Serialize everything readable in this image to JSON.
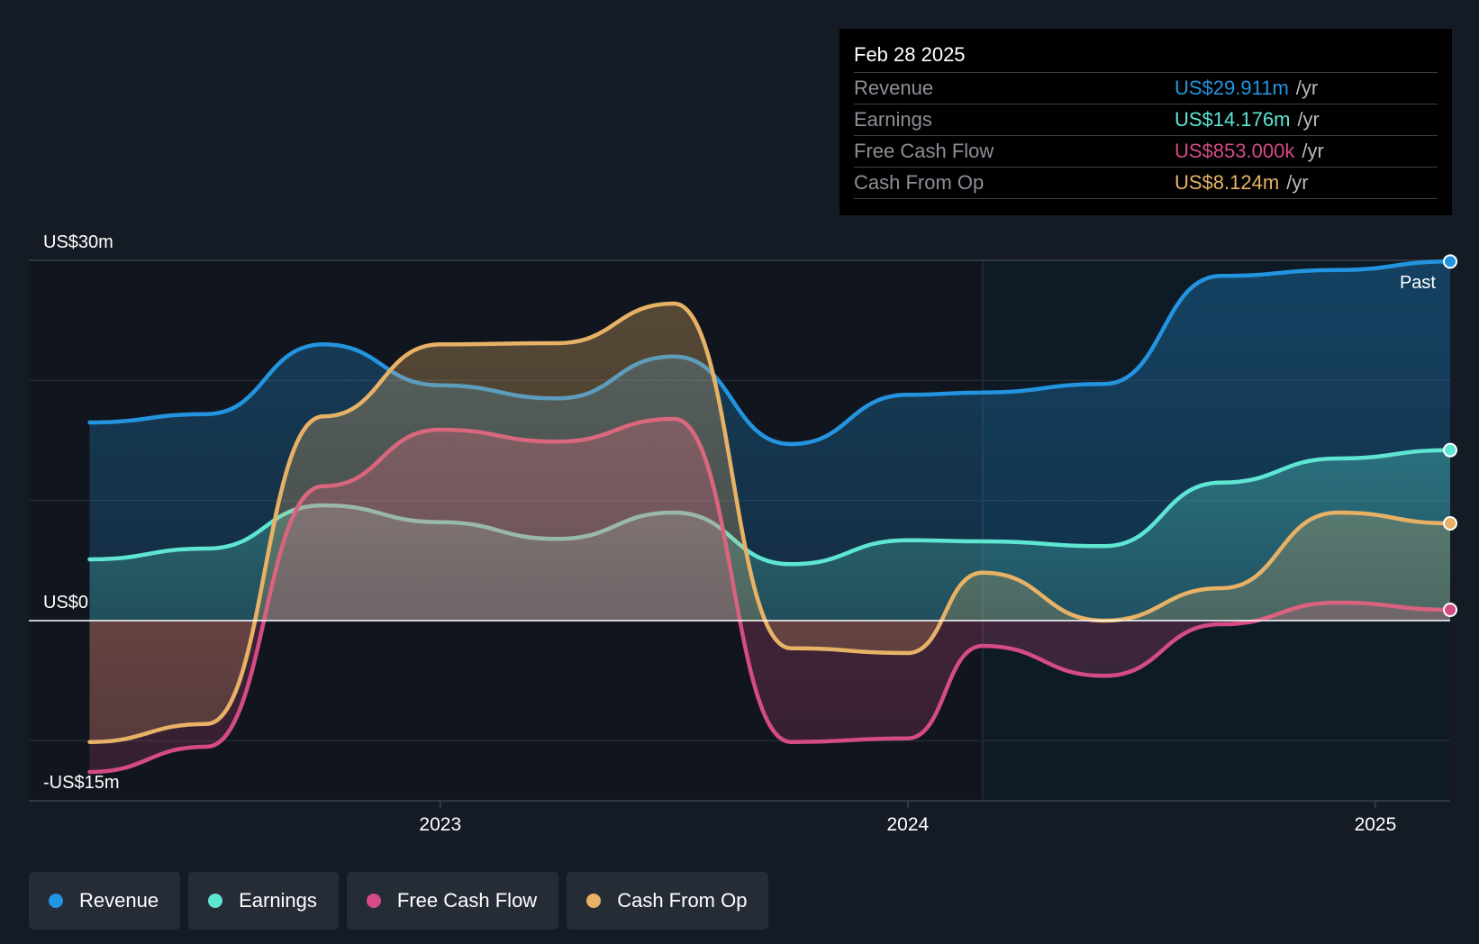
{
  "chart_data": {
    "type": "area",
    "y_unit": "US$ m",
    "ylim": [
      -15,
      30
    ],
    "y_tick_labels": [
      {
        "value": 30,
        "label": "US$30m"
      },
      {
        "value": 0,
        "label": "US$0"
      },
      {
        "value": -15,
        "label": "-US$15m"
      }
    ],
    "x_ticks": [
      {
        "value": 2023.0,
        "label": "2023"
      },
      {
        "value": 2024.0,
        "label": "2024"
      },
      {
        "value": 2025.0,
        "label": "2025"
      }
    ],
    "x_range": [
      2022.12,
      2025.16
    ],
    "past_divider_x": 2024.16,
    "past_label": "Past",
    "x": [
      2022.25,
      2022.5,
      2022.75,
      2023.0,
      2023.25,
      2023.5,
      2023.75,
      2024.0,
      2024.16,
      2024.42,
      2024.67,
      2024.92,
      2025.16
    ],
    "series": [
      {
        "name": "Revenue",
        "color": "#2394df",
        "values": [
          16.5,
          17.2,
          23.0,
          19.6,
          18.5,
          22.0,
          14.7,
          18.8,
          19.0,
          19.7,
          28.7,
          29.2,
          29.9
        ]
      },
      {
        "name": "Earnings",
        "color": "#5ee6d3",
        "values": [
          5.1,
          6.0,
          9.6,
          8.2,
          6.8,
          9.0,
          4.7,
          6.7,
          6.6,
          6.2,
          11.5,
          13.5,
          14.2
        ]
      },
      {
        "name": "Free Cash Flow",
        "color": "#d54b86",
        "values": [
          -12.6,
          -10.5,
          11.2,
          15.9,
          14.9,
          16.8,
          -10.1,
          -9.8,
          -2.1,
          -4.6,
          -0.3,
          1.5,
          0.9
        ]
      },
      {
        "name": "Cash From Op",
        "color": "#e8b266",
        "values": [
          -10.1,
          -8.6,
          17.0,
          23.0,
          23.1,
          26.4,
          -2.3,
          -2.7,
          4.0,
          0.0,
          2.7,
          9.0,
          8.1
        ]
      }
    ]
  },
  "tooltip": {
    "date": "Feb 28 2025",
    "rows": [
      {
        "label": "Revenue",
        "value": "US$29.911m",
        "unit": "/yr",
        "color": "#2394df"
      },
      {
        "label": "Earnings",
        "value": "US$14.176m",
        "unit": "/yr",
        "color": "#5ee6d3"
      },
      {
        "label": "Free Cash Flow",
        "value": "US$853.000k",
        "unit": "/yr",
        "color": "#d54b86"
      },
      {
        "label": "Cash From Op",
        "value": "US$8.124m",
        "unit": "/yr",
        "color": "#e8b266"
      }
    ]
  },
  "legend": [
    {
      "label": "Revenue",
      "color": "#2394df"
    },
    {
      "label": "Earnings",
      "color": "#5ee6d3"
    },
    {
      "label": "Free Cash Flow",
      "color": "#d54b86"
    },
    {
      "label": "Cash From Op",
      "color": "#e8b266"
    }
  ]
}
